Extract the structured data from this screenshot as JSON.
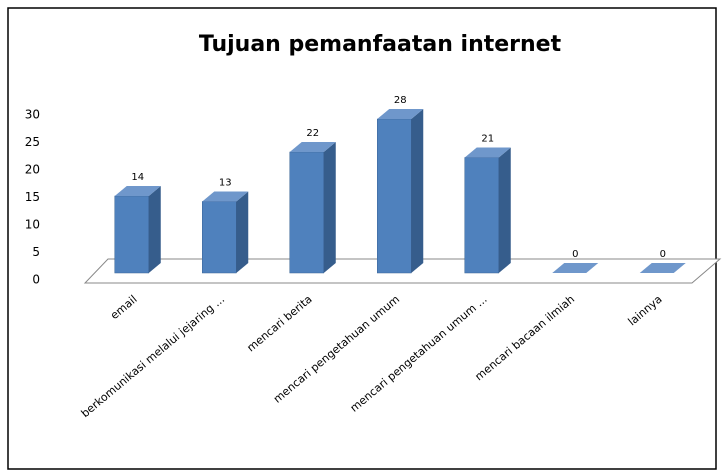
{
  "chart_data": {
    "type": "bar",
    "title": "Tujuan pemanfaatan internet",
    "categories": [
      "email",
      "berkomunikasi melalui jejaring ...",
      "mencari berita",
      "mencari pengetahuan umum",
      "mencari pengetahuan umum ...",
      "mencari bacaan ilmiah",
      "lainnya"
    ],
    "values": [
      14,
      13,
      22,
      28,
      21,
      0,
      0
    ],
    "color": "#4f81bd",
    "ylim": [
      0,
      30
    ],
    "yticks": [
      0,
      5,
      10,
      15,
      20,
      25,
      30
    ]
  }
}
